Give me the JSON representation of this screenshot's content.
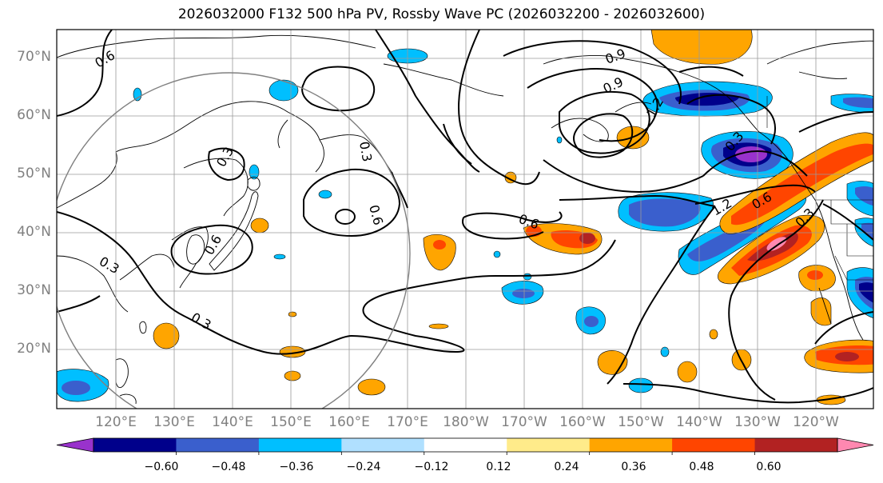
{
  "title": "2026032000 F132 500 hPa PV, Rossby Wave PC (2026032200 - 2026032600)",
  "lat_ticks": [
    "70°N",
    "60°N",
    "50°N",
    "40°N",
    "30°N",
    "20°N"
  ],
  "lon_ticks": [
    "120°E",
    "130°E",
    "140°E",
    "150°E",
    "160°E",
    "170°E",
    "180°W",
    "170°W",
    "160°W",
    "150°W",
    "140°W",
    "130°W",
    "120°W"
  ],
  "colorbar": {
    "ticks": [
      "−0.60",
      "−0.48",
      "−0.36",
      "−0.24",
      "−0.12",
      "0.12",
      "0.24",
      "0.36",
      "0.48",
      "0.60"
    ],
    "colors": [
      "#9932cc",
      "#00008b",
      "#3a5fcd",
      "#00bfff",
      "#b0e0ff",
      "#ffffff",
      "#ffeb8a",
      "#ffa500",
      "#ff4500",
      "#b22222",
      "#ff88b0"
    ]
  },
  "contour_labels": [
    "0.6",
    "0.3",
    "0.9",
    "1.2",
    "0.6",
    "0.3",
    "0.6",
    "0.6",
    "0.9",
    "0.3",
    "0.3",
    "0.3",
    "1.2",
    "0.6",
    "0.3"
  ]
}
